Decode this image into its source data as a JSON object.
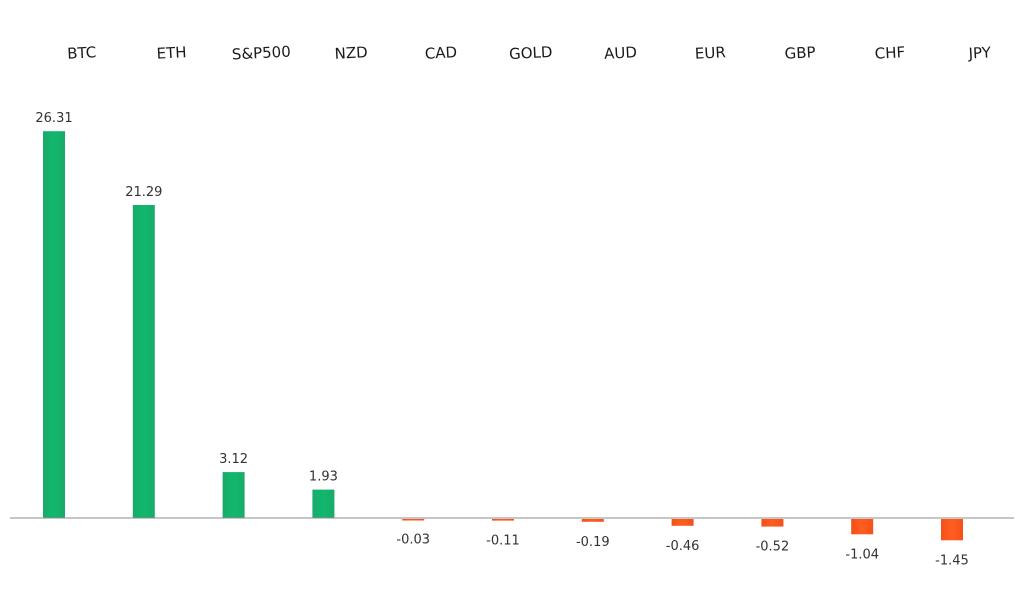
{
  "chart_data": {
    "type": "bar",
    "title": "",
    "xlabel": "",
    "ylabel": "",
    "categories": [
      "BTC",
      "ETH",
      "S&P500",
      "NZD",
      "CAD",
      "GOLD",
      "AUD",
      "EUR",
      "GBP",
      "CHF",
      "JPY"
    ],
    "values": [
      26.31,
      21.29,
      3.12,
      1.93,
      -0.03,
      -0.11,
      -0.19,
      -0.46,
      -0.52,
      -1.04,
      -1.45
    ],
    "value_labels": [
      "26.31",
      "21.29",
      "3.12",
      "1.93",
      "-0.03",
      "-0.11",
      "-0.19",
      "-0.46",
      "-0.52",
      "-1.04",
      "-1.45"
    ],
    "ylim": [
      -1.45,
      26.31
    ],
    "grid": false,
    "legend": "none",
    "category_labels_position": "top",
    "colors": {
      "positive": "#1aaa6a",
      "negative": "#ff5a1f",
      "axis": "#8c8c8c"
    }
  }
}
